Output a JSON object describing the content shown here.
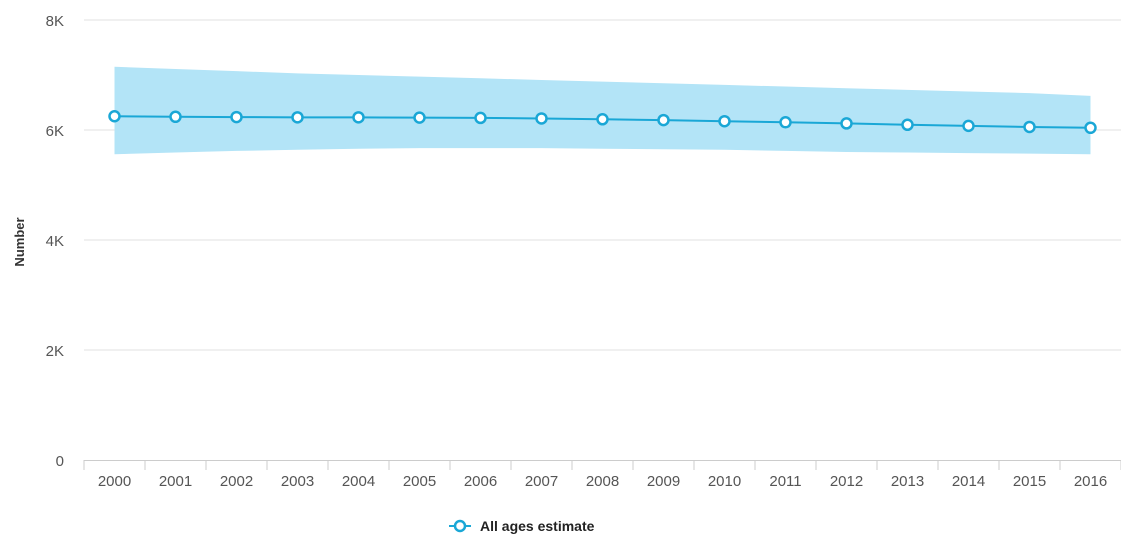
{
  "chart_data": {
    "type": "line",
    "ylabel": "Number",
    "ylim": [
      0,
      8000
    ],
    "yticks": [
      {
        "value": 0,
        "label": "0"
      },
      {
        "value": 2000,
        "label": "2K"
      },
      {
        "value": 4000,
        "label": "4K"
      },
      {
        "value": 6000,
        "label": "6K"
      },
      {
        "value": 8000,
        "label": "8K"
      }
    ],
    "categories": [
      "2000",
      "2001",
      "2002",
      "2003",
      "2004",
      "2005",
      "2006",
      "2007",
      "2008",
      "2009",
      "2010",
      "2011",
      "2012",
      "2013",
      "2014",
      "2015",
      "2016"
    ],
    "series": [
      {
        "name": "All ages estimate",
        "color": "#1aa7d6",
        "values": [
          6250,
          6240,
          6235,
          6230,
          6230,
          6225,
          6220,
          6210,
          6195,
          6180,
          6160,
          6140,
          6120,
          6095,
          6075,
          6055,
          6040
        ],
        "band_upper": [
          7150,
          7110,
          7070,
          7030,
          7000,
          6970,
          6940,
          6910,
          6880,
          6850,
          6820,
          6790,
          6760,
          6730,
          6700,
          6670,
          6620
        ],
        "band_lower": [
          5560,
          5590,
          5620,
          5640,
          5660,
          5670,
          5670,
          5670,
          5660,
          5650,
          5640,
          5620,
          5600,
          5590,
          5580,
          5570,
          5560
        ]
      }
    ],
    "band_color": "#b3e4f7",
    "grid": true,
    "legend_position": "bottom"
  }
}
